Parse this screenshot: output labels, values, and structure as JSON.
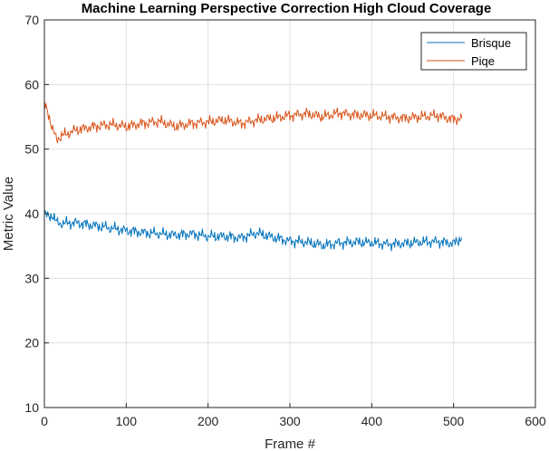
{
  "chart_data": {
    "type": "line",
    "title": "Machine Learning Perspective Correction High Cloud Coverage",
    "xlabel": "Frame #",
    "ylabel": "Metric Value",
    "xlim": [
      0,
      600
    ],
    "ylim": [
      10,
      70
    ],
    "xticks": [
      0,
      100,
      200,
      300,
      400,
      500,
      600
    ],
    "yticks": [
      10,
      20,
      30,
      40,
      50,
      60,
      70
    ],
    "grid": true,
    "legend_position": "top-right",
    "series": [
      {
        "name": "Brisque",
        "color": "#0072BD",
        "x": [
          0,
          5,
          10,
          15,
          20,
          40,
          60,
          80,
          100,
          120,
          140,
          160,
          180,
          200,
          220,
          240,
          260,
          280,
          300,
          320,
          340,
          360,
          380,
          400,
          420,
          440,
          460,
          480,
          500,
          510
        ],
        "y": [
          40,
          39.5,
          39.8,
          38.6,
          38.5,
          38.6,
          38.2,
          37.8,
          37.4,
          37.1,
          36.9,
          36.7,
          36.9,
          36.5,
          36.5,
          36.3,
          37.0,
          36.3,
          35.8,
          35.6,
          35.1,
          35.5,
          35.6,
          35.5,
          35.3,
          35.4,
          35.6,
          35.7,
          35.4,
          36.3
        ]
      },
      {
        "name": "Piqe",
        "color": "#D95319",
        "x": [
          0,
          5,
          10,
          15,
          20,
          40,
          60,
          80,
          100,
          120,
          140,
          160,
          180,
          200,
          220,
          240,
          260,
          280,
          300,
          320,
          340,
          360,
          380,
          400,
          420,
          440,
          460,
          480,
          500,
          510
        ],
        "y": [
          57,
          55.5,
          53,
          51.5,
          52,
          53,
          53.5,
          53.8,
          53.5,
          54,
          54.3,
          53.5,
          54,
          54.2,
          54.5,
          54,
          54.5,
          54.8,
          55.2,
          55.5,
          55,
          55.6,
          55.3,
          55.2,
          55,
          54.8,
          55,
          55.2,
          54.6,
          54.8
        ]
      }
    ]
  }
}
